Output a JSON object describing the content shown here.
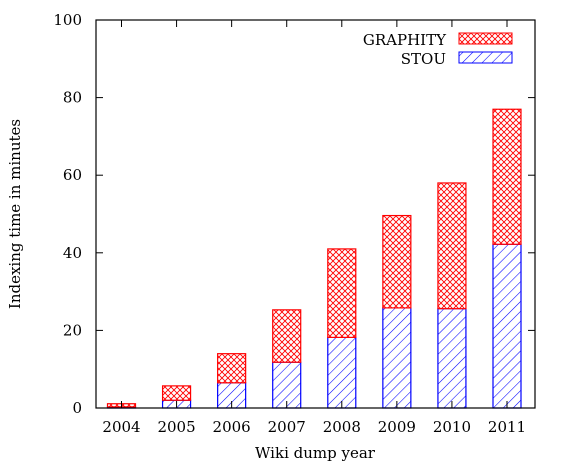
{
  "chart_data": {
    "type": "bar",
    "stacked": true,
    "categories": [
      "2004",
      "2005",
      "2006",
      "2007",
      "2008",
      "2009",
      "2010",
      "2011"
    ],
    "series": [
      {
        "name": "STOU",
        "values": [
          0.3,
          2.0,
          6.5,
          11.8,
          18.2,
          25.8,
          25.6,
          42.2
        ],
        "color": "#0000ff",
        "pattern": "diagonal-hatch"
      },
      {
        "name": "GRAPHITY",
        "values": [
          0.8,
          3.7,
          7.5,
          13.5,
          22.8,
          23.8,
          32.4,
          34.8
        ],
        "color": "#ff0000",
        "pattern": "crosshatch"
      }
    ],
    "xlabel": "Wiki dump year",
    "ylabel": "Indexing time in minutes",
    "ylim": [
      0,
      100
    ],
    "yticks": [
      "0",
      "20",
      "40",
      "60",
      "80",
      "100"
    ],
    "grid": false,
    "legend_position": "top-right"
  }
}
